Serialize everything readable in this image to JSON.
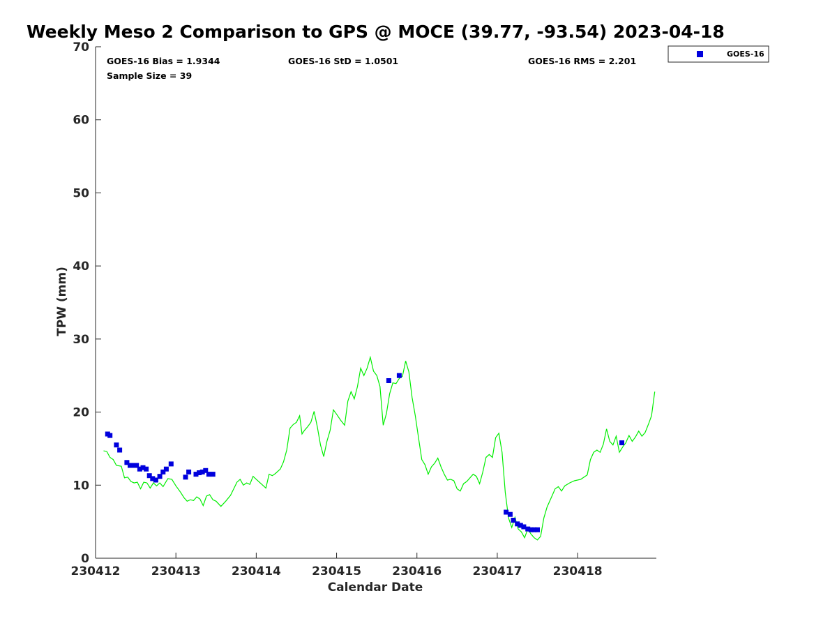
{
  "chart_data": {
    "type": "scatter",
    "title": "Weekly Meso 2 Comparison to GPS @ MOCE (39.77, -93.54) 2023-04-18",
    "xlabel": "Calendar Date",
    "ylabel": "TPW (mm)",
    "xlim": [
      0,
      6.98
    ],
    "ylim": [
      0,
      70
    ],
    "x_ticks": [
      0,
      1,
      2,
      3,
      4,
      5,
      6
    ],
    "x_tick_labels": [
      "230412",
      "230413",
      "230414",
      "230415",
      "230416",
      "230417",
      "230418"
    ],
    "y_ticks": [
      0,
      10,
      20,
      30,
      40,
      50,
      60,
      70
    ],
    "y_tick_labels": [
      "0",
      "10",
      "20",
      "30",
      "40",
      "50",
      "60",
      "70"
    ],
    "stats": {
      "bias": "GOES-16 Bias = 1.9344",
      "std": "GOES-16 StD = 1.0501",
      "rms": "GOES-16 RMS = 2.201",
      "sample": "Sample Size = 39"
    },
    "legend": {
      "position": "top-right",
      "label": "GOES-16"
    },
    "series": [
      {
        "name": "GOES-16",
        "kind": "scatter",
        "marker": "square",
        "color": "#0000dd",
        "points": [
          [
            0.15,
            17.0
          ],
          [
            0.18,
            16.8
          ],
          [
            0.26,
            15.5
          ],
          [
            0.3,
            14.8
          ],
          [
            0.39,
            13.1
          ],
          [
            0.43,
            12.7
          ],
          [
            0.47,
            12.7
          ],
          [
            0.51,
            12.7
          ],
          [
            0.55,
            12.2
          ],
          [
            0.59,
            12.4
          ],
          [
            0.63,
            12.2
          ],
          [
            0.67,
            11.3
          ],
          [
            0.71,
            10.9
          ],
          [
            0.75,
            10.7
          ],
          [
            0.8,
            11.2
          ],
          [
            0.84,
            11.8
          ],
          [
            0.88,
            12.2
          ],
          [
            0.94,
            12.9
          ],
          [
            1.12,
            11.1
          ],
          [
            1.16,
            11.8
          ],
          [
            1.25,
            11.5
          ],
          [
            1.29,
            11.7
          ],
          [
            1.33,
            11.8
          ],
          [
            1.37,
            12.0
          ],
          [
            1.41,
            11.5
          ],
          [
            1.46,
            11.5
          ],
          [
            3.65,
            24.3
          ],
          [
            3.78,
            25.0
          ],
          [
            5.11,
            6.3
          ],
          [
            5.16,
            6.0
          ],
          [
            5.2,
            5.2
          ],
          [
            5.25,
            4.7
          ],
          [
            5.29,
            4.5
          ],
          [
            5.33,
            4.3
          ],
          [
            5.38,
            4.0
          ],
          [
            5.42,
            3.9
          ],
          [
            5.46,
            3.9
          ],
          [
            5.5,
            3.9
          ],
          [
            6.55,
            15.8
          ]
        ]
      },
      {
        "name": "GPS",
        "kind": "line",
        "color": "#00ee00",
        "points": [
          [
            0.1,
            14.7
          ],
          [
            0.14,
            14.6
          ],
          [
            0.18,
            13.8
          ],
          [
            0.22,
            13.5
          ],
          [
            0.26,
            12.7
          ],
          [
            0.32,
            12.6
          ],
          [
            0.36,
            11.0
          ],
          [
            0.4,
            11.1
          ],
          [
            0.44,
            10.5
          ],
          [
            0.48,
            10.3
          ],
          [
            0.52,
            10.4
          ],
          [
            0.56,
            9.5
          ],
          [
            0.6,
            10.4
          ],
          [
            0.64,
            10.3
          ],
          [
            0.68,
            9.6
          ],
          [
            0.72,
            10.3
          ],
          [
            0.76,
            9.9
          ],
          [
            0.8,
            10.3
          ],
          [
            0.84,
            9.8
          ],
          [
            0.9,
            10.9
          ],
          [
            0.95,
            10.8
          ],
          [
            1.0,
            9.9
          ],
          [
            1.06,
            9.0
          ],
          [
            1.1,
            8.3
          ],
          [
            1.14,
            7.8
          ],
          [
            1.18,
            8.0
          ],
          [
            1.22,
            7.9
          ],
          [
            1.26,
            8.4
          ],
          [
            1.3,
            8.1
          ],
          [
            1.34,
            7.2
          ],
          [
            1.38,
            8.5
          ],
          [
            1.42,
            8.7
          ],
          [
            1.46,
            8.0
          ],
          [
            1.5,
            7.8
          ],
          [
            1.56,
            7.1
          ],
          [
            1.62,
            7.8
          ],
          [
            1.68,
            8.6
          ],
          [
            1.72,
            9.5
          ],
          [
            1.76,
            10.4
          ],
          [
            1.8,
            10.8
          ],
          [
            1.84,
            10.0
          ],
          [
            1.88,
            10.3
          ],
          [
            1.92,
            10.1
          ],
          [
            1.96,
            11.2
          ],
          [
            2.0,
            10.8
          ],
          [
            2.06,
            10.2
          ],
          [
            2.12,
            9.6
          ],
          [
            2.16,
            11.5
          ],
          [
            2.2,
            11.3
          ],
          [
            2.24,
            11.6
          ],
          [
            2.3,
            12.2
          ],
          [
            2.34,
            13.2
          ],
          [
            2.38,
            14.8
          ],
          [
            2.42,
            17.8
          ],
          [
            2.46,
            18.3
          ],
          [
            2.5,
            18.6
          ],
          [
            2.54,
            19.5
          ],
          [
            2.57,
            17.0
          ],
          [
            2.6,
            17.5
          ],
          [
            2.64,
            18.0
          ],
          [
            2.68,
            18.6
          ],
          [
            2.72,
            20.1
          ],
          [
            2.76,
            18.0
          ],
          [
            2.8,
            15.5
          ],
          [
            2.84,
            13.9
          ],
          [
            2.88,
            16.0
          ],
          [
            2.92,
            17.5
          ],
          [
            2.96,
            20.3
          ],
          [
            3.0,
            19.7
          ],
          [
            3.05,
            18.9
          ],
          [
            3.1,
            18.2
          ],
          [
            3.14,
            21.5
          ],
          [
            3.18,
            22.8
          ],
          [
            3.22,
            21.8
          ],
          [
            3.26,
            23.5
          ],
          [
            3.3,
            26.0
          ],
          [
            3.34,
            25.0
          ],
          [
            3.38,
            26.0
          ],
          [
            3.42,
            27.5
          ],
          [
            3.46,
            25.6
          ],
          [
            3.5,
            25.0
          ],
          [
            3.54,
            23.5
          ],
          [
            3.58,
            18.2
          ],
          [
            3.62,
            19.8
          ],
          [
            3.66,
            22.5
          ],
          [
            3.7,
            24.0
          ],
          [
            3.74,
            23.9
          ],
          [
            3.78,
            24.6
          ],
          [
            3.82,
            24.9
          ],
          [
            3.86,
            27.0
          ],
          [
            3.9,
            25.5
          ],
          [
            3.94,
            22.0
          ],
          [
            3.98,
            19.5
          ],
          [
            4.02,
            16.5
          ],
          [
            4.06,
            13.5
          ],
          [
            4.1,
            12.8
          ],
          [
            4.14,
            11.5
          ],
          [
            4.18,
            12.5
          ],
          [
            4.22,
            13.0
          ],
          [
            4.26,
            13.7
          ],
          [
            4.3,
            12.5
          ],
          [
            4.34,
            11.5
          ],
          [
            4.38,
            10.7
          ],
          [
            4.42,
            10.8
          ],
          [
            4.46,
            10.6
          ],
          [
            4.5,
            9.5
          ],
          [
            4.54,
            9.2
          ],
          [
            4.58,
            10.2
          ],
          [
            4.62,
            10.5
          ],
          [
            4.66,
            11.0
          ],
          [
            4.7,
            11.5
          ],
          [
            4.74,
            11.2
          ],
          [
            4.78,
            10.2
          ],
          [
            4.82,
            11.8
          ],
          [
            4.86,
            13.8
          ],
          [
            4.9,
            14.2
          ],
          [
            4.94,
            13.8
          ],
          [
            4.98,
            16.5
          ],
          [
            5.02,
            17.1
          ],
          [
            5.06,
            14.5
          ],
          [
            5.1,
            9.0
          ],
          [
            5.14,
            5.5
          ],
          [
            5.18,
            4.2
          ],
          [
            5.22,
            5.6
          ],
          [
            5.26,
            4.0
          ],
          [
            5.3,
            3.6
          ],
          [
            5.34,
            2.8
          ],
          [
            5.38,
            4.0
          ],
          [
            5.42,
            3.3
          ],
          [
            5.46,
            2.8
          ],
          [
            5.5,
            2.5
          ],
          [
            5.54,
            3.0
          ],
          [
            5.58,
            5.5
          ],
          [
            5.62,
            7.0
          ],
          [
            5.68,
            8.5
          ],
          [
            5.72,
            9.5
          ],
          [
            5.76,
            9.8
          ],
          [
            5.8,
            9.2
          ],
          [
            5.84,
            9.9
          ],
          [
            5.9,
            10.3
          ],
          [
            5.96,
            10.6
          ],
          [
            6.04,
            10.8
          ],
          [
            6.12,
            11.4
          ],
          [
            6.16,
            13.5
          ],
          [
            6.2,
            14.5
          ],
          [
            6.24,
            14.8
          ],
          [
            6.28,
            14.5
          ],
          [
            6.32,
            15.6
          ],
          [
            6.36,
            17.7
          ],
          [
            6.4,
            16.0
          ],
          [
            6.44,
            15.5
          ],
          [
            6.48,
            16.7
          ],
          [
            6.52,
            14.5
          ],
          [
            6.56,
            15.2
          ],
          [
            6.6,
            15.8
          ],
          [
            6.64,
            16.8
          ],
          [
            6.68,
            16.0
          ],
          [
            6.72,
            16.6
          ],
          [
            6.76,
            17.4
          ],
          [
            6.8,
            16.7
          ],
          [
            6.84,
            17.2
          ],
          [
            6.88,
            18.3
          ],
          [
            6.92,
            19.5
          ],
          [
            6.96,
            22.8
          ]
        ]
      }
    ]
  }
}
